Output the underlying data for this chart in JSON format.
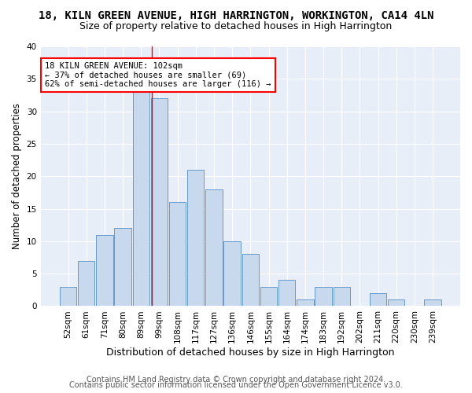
{
  "title1": "18, KILN GREEN AVENUE, HIGH HARRINGTON, WORKINGTON, CA14 4LN",
  "title2": "Size of property relative to detached houses in High Harrington",
  "xlabel": "Distribution of detached houses by size in High Harrington",
  "ylabel": "Number of detached properties",
  "categories": [
    "52sqm",
    "61sqm",
    "71sqm",
    "80sqm",
    "89sqm",
    "99sqm",
    "108sqm",
    "117sqm",
    "127sqm",
    "136sqm",
    "146sqm",
    "155sqm",
    "164sqm",
    "174sqm",
    "183sqm",
    "192sqm",
    "202sqm",
    "211sqm",
    "220sqm",
    "230sqm",
    "239sqm"
  ],
  "values": [
    3,
    7,
    11,
    12,
    33,
    32,
    16,
    21,
    18,
    10,
    8,
    3,
    4,
    1,
    3,
    3,
    0,
    2,
    1,
    0,
    1
  ],
  "bar_color": "#c8d9ee",
  "bar_edge_color": "#6699cc",
  "annotation_box_text": "18 KILN GREEN AVENUE: 102sqm\n← 37% of detached houses are smaller (69)\n62% of semi-detached houses are larger (116) →",
  "annotation_box_color": "white",
  "annotation_box_edge_color": "red",
  "vline_x": 4.58,
  "vline_color": "red",
  "ylim": [
    0,
    40
  ],
  "yticks": [
    0,
    5,
    10,
    15,
    20,
    25,
    30,
    35,
    40
  ],
  "footer1": "Contains HM Land Registry data © Crown copyright and database right 2024.",
  "footer2": "Contains public sector information licensed under the Open Government Licence v3.0.",
  "bg_color": "#ffffff",
  "plot_bg_color": "#e8eef8",
  "title1_fontsize": 10,
  "title2_fontsize": 9,
  "xlabel_fontsize": 9,
  "ylabel_fontsize": 8.5,
  "tick_fontsize": 7.5,
  "footer_fontsize": 7,
  "annot_fontsize": 7.5
}
